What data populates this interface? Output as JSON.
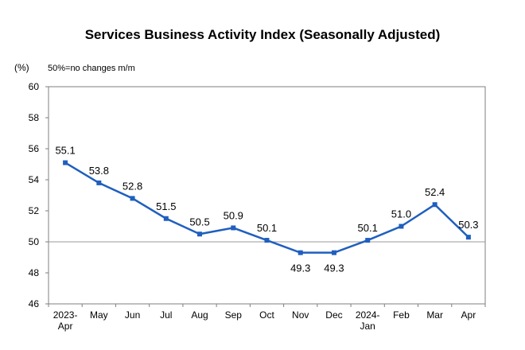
{
  "chart_data": {
    "type": "line",
    "title": "Services Business Activity Index (Seasonally Adjusted)",
    "unit": "(%)",
    "note": "50%=no changes m/m",
    "categories": [
      [
        "2023-",
        "Apr"
      ],
      [
        "May"
      ],
      [
        "Jun"
      ],
      [
        "Jul"
      ],
      [
        "Aug"
      ],
      [
        "Sep"
      ],
      [
        "Oct"
      ],
      [
        "Nov"
      ],
      [
        "Dec"
      ],
      [
        "2024-",
        "Jan"
      ],
      [
        "Feb"
      ],
      [
        "Mar"
      ],
      [
        "Apr"
      ]
    ],
    "values": [
      55.1,
      53.8,
      52.8,
      51.5,
      50.5,
      50.9,
      50.1,
      49.3,
      49.3,
      50.1,
      51.0,
      52.4,
      50.3
    ],
    "value_labels": [
      "55.1",
      "53.8",
      "52.8",
      "51.5",
      "50.5",
      "50.9",
      "50.1",
      "49.3",
      "49.3",
      "50.1",
      "51.0",
      "52.4",
      "50.3"
    ],
    "label_position": [
      "above",
      "above",
      "above",
      "above",
      "above",
      "above",
      "above",
      "below",
      "below",
      "above",
      "above",
      "above",
      "above"
    ],
    "yticks": [
      46,
      48,
      50,
      52,
      54,
      56,
      58,
      60
    ],
    "ylim": [
      46,
      60
    ],
    "reference_line": 50,
    "grid": false,
    "line_color": "#1f5fbf",
    "reference_color": "#999999"
  }
}
